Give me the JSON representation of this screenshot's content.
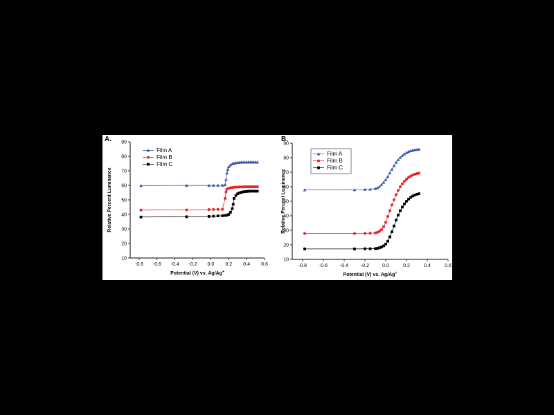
{
  "figure": {
    "background": "#000000",
    "panel_background": "#ffffff"
  },
  "series_styles": [
    {
      "name": "Film A",
      "color": "#3a55b0",
      "marker": "triangle"
    },
    {
      "name": "Film B",
      "color": "#e8262b",
      "marker": "circle"
    },
    {
      "name": "Film C",
      "color": "#000000",
      "marker": "square"
    }
  ],
  "chart_data": [
    {
      "panel_label": "A.",
      "type": "line",
      "xlabel": "Potential (V) vs. Ag/Ag",
      "xlabel_superscript": "+",
      "ylabel": "Relative Percent Luminance",
      "xlim": [
        -0.9,
        0.6
      ],
      "ylim": [
        10,
        90
      ],
      "xticks": [
        "-0.8",
        "-0.6",
        "-0.4",
        "-0.2",
        "0.0",
        "0.2",
        "0.4",
        "0.6"
      ],
      "yticks": [
        "10",
        "20",
        "30",
        "40",
        "50",
        "60",
        "70",
        "80",
        "90"
      ],
      "grid": false,
      "legend": "top-left",
      "series": [
        {
          "name": "Film A",
          "x": [
            -0.78,
            -0.27,
            -0.02,
            0.03,
            0.08,
            0.13,
            0.16,
            0.17,
            0.18,
            0.19,
            0.2,
            0.22,
            0.24,
            0.26,
            0.28,
            0.3,
            0.32,
            0.34,
            0.36,
            0.38,
            0.4,
            0.42,
            0.44,
            0.46,
            0.48,
            0.5,
            0.52
          ],
          "y": [
            59.8,
            59.9,
            59.9,
            60,
            60,
            60.1,
            60.4,
            64,
            68.5,
            71,
            72.8,
            74,
            74.8,
            75.2,
            75.5,
            75.7,
            75.8,
            75.9,
            75.9,
            76,
            76,
            76,
            76,
            76,
            76,
            76,
            76
          ]
        },
        {
          "name": "Film B",
          "x": [
            -0.78,
            -0.27,
            -0.02,
            0.03,
            0.08,
            0.13,
            0.16,
            0.17,
            0.18,
            0.2,
            0.22,
            0.24,
            0.26,
            0.28,
            0.3,
            0.32,
            0.34,
            0.36,
            0.38,
            0.4,
            0.42,
            0.44,
            0.46,
            0.48,
            0.5,
            0.52
          ],
          "y": [
            43,
            43.1,
            43.3,
            43.4,
            43.5,
            43.5,
            51,
            55.5,
            57.3,
            58,
            58.3,
            58.5,
            58.7,
            58.8,
            58.8,
            58.9,
            58.9,
            58.9,
            59,
            59,
            59,
            59,
            59,
            59,
            59,
            59
          ]
        },
        {
          "name": "Film C",
          "x": [
            -0.78,
            -0.27,
            -0.02,
            0.03,
            0.08,
            0.13,
            0.16,
            0.18,
            0.2,
            0.22,
            0.24,
            0.25,
            0.26,
            0.28,
            0.3,
            0.32,
            0.34,
            0.36,
            0.38,
            0.4,
            0.42,
            0.44,
            0.46,
            0.48,
            0.5,
            0.52
          ],
          "y": [
            38.2,
            38.4,
            38.6,
            38.8,
            39,
            39.1,
            39.3,
            39.5,
            40,
            41.5,
            44,
            47,
            51,
            53,
            54.2,
            54.8,
            55.2,
            55.5,
            55.7,
            55.8,
            55.9,
            56,
            56,
            56,
            56,
            56
          ]
        }
      ]
    },
    {
      "panel_label": "B.",
      "type": "line",
      "xlabel": "Potential (V) vs. Ag/Ag",
      "xlabel_superscript": "+",
      "ylabel": "Relative Percent Luminance",
      "xlim": [
        -0.9,
        0.6
      ],
      "ylim": [
        10,
        90
      ],
      "xticks": [
        "-0.8",
        "-0.6",
        "-0.4",
        "-0.2",
        "0.0",
        "0.2",
        "0.4",
        "0.6"
      ],
      "yticks": [
        "10",
        "20",
        "30",
        "40",
        "50",
        "60",
        "70",
        "80",
        "90"
      ],
      "grid": false,
      "legend": "top-left",
      "series": [
        {
          "name": "Film A",
          "x": [
            -0.78,
            -0.3,
            -0.2,
            -0.15,
            -0.1,
            -0.08,
            -0.06,
            -0.04,
            -0.02,
            0.0,
            0.02,
            0.04,
            0.06,
            0.08,
            0.1,
            0.12,
            0.14,
            0.16,
            0.18,
            0.2,
            0.22,
            0.24,
            0.26,
            0.28,
            0.3,
            0.32
          ],
          "y": [
            57.8,
            57.9,
            58.1,
            58.3,
            58.7,
            59.3,
            60.2,
            61.5,
            63,
            64.8,
            67,
            69.5,
            72,
            74.5,
            76.8,
            78.6,
            80.2,
            81.5,
            82.6,
            83.5,
            84.2,
            84.7,
            85.1,
            85.4,
            85.6,
            85.8
          ]
        },
        {
          "name": "Film B",
          "x": [
            -0.78,
            -0.3,
            -0.2,
            -0.15,
            -0.1,
            -0.08,
            -0.06,
            -0.04,
            -0.02,
            0.0,
            0.02,
            0.04,
            0.06,
            0.08,
            0.1,
            0.12,
            0.14,
            0.16,
            0.18,
            0.2,
            0.22,
            0.24,
            0.26,
            0.28,
            0.3,
            0.32
          ],
          "y": [
            27.8,
            27.8,
            27.9,
            28,
            28.2,
            28.6,
            29.3,
            30.5,
            32.5,
            35.5,
            39.5,
            43.5,
            47.5,
            51,
            54.5,
            57.5,
            60,
            62,
            63.8,
            65.2,
            66.4,
            67.3,
            68,
            68.6,
            69,
            69.3
          ]
        },
        {
          "name": "Film C",
          "x": [
            -0.78,
            -0.3,
            -0.2,
            -0.15,
            -0.1,
            -0.08,
            -0.06,
            -0.04,
            -0.02,
            0.0,
            0.02,
            0.04,
            0.06,
            0.08,
            0.1,
            0.12,
            0.14,
            0.16,
            0.18,
            0.2,
            0.22,
            0.24,
            0.26,
            0.28,
            0.3,
            0.32
          ],
          "y": [
            17.2,
            17.2,
            17.3,
            17.3,
            17.4,
            17.6,
            18,
            18.5,
            19.3,
            20.5,
            22.5,
            25.5,
            29,
            33,
            37,
            40.5,
            43.5,
            46,
            48.2,
            50,
            51.5,
            52.7,
            53.6,
            54.3,
            54.8,
            55.2
          ]
        }
      ]
    }
  ]
}
